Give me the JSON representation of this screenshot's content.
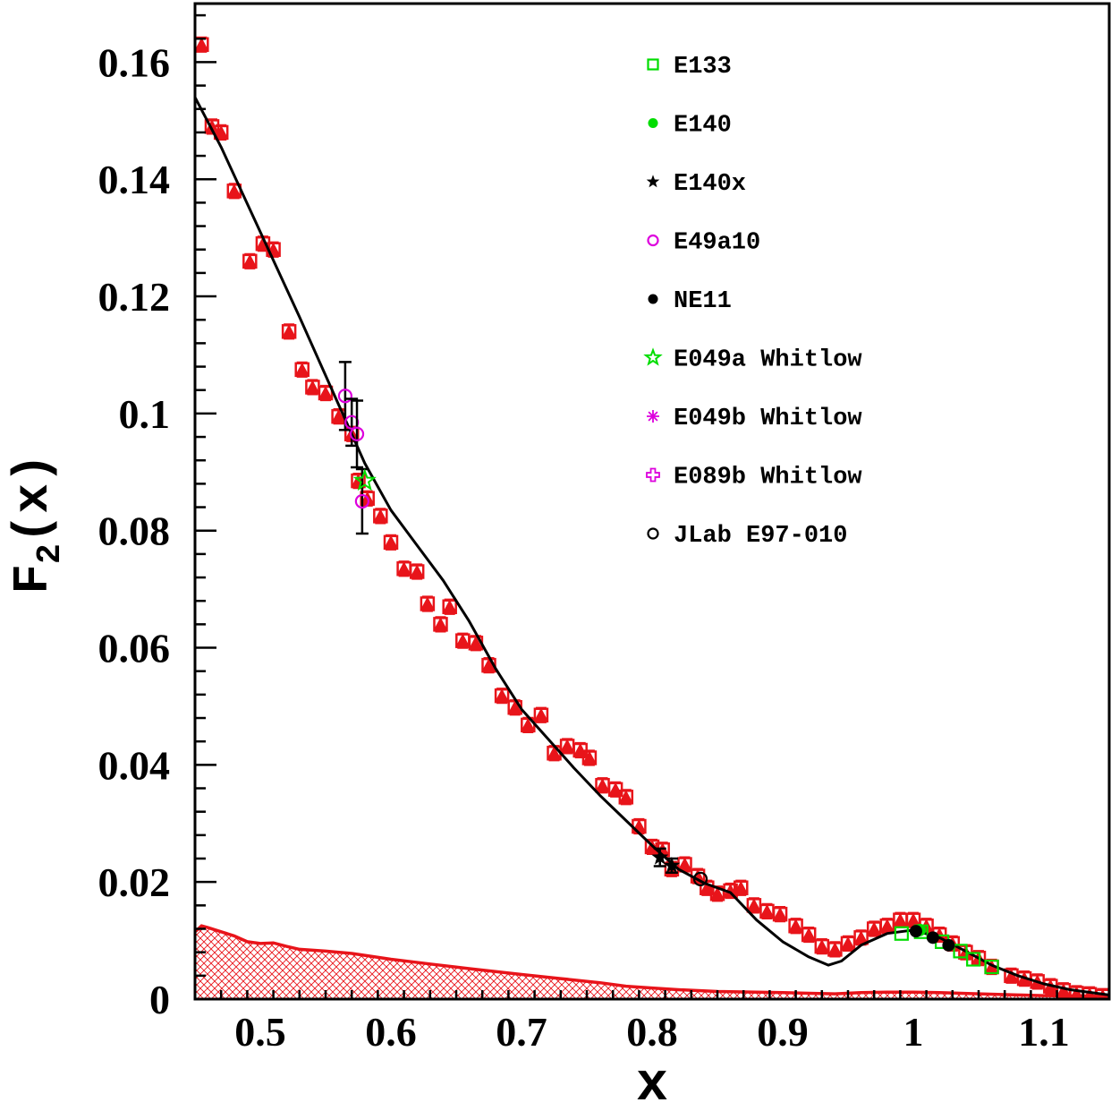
{
  "chart_data": {
    "type": "scatter",
    "title": "",
    "xlabel": "x",
    "ylabel": "F",
    "ylabel_sub": "2",
    "ylabel_rest": "(x)",
    "xlim": [
      0.45,
      1.15
    ],
    "ylim": [
      0,
      0.17
    ],
    "x_ticks": [
      {
        "value": 0.5,
        "label": "0.5"
      },
      {
        "value": 0.6,
        "label": "0.6"
      },
      {
        "value": 0.7,
        "label": "0.7"
      },
      {
        "value": 0.8,
        "label": "0.8"
      },
      {
        "value": 0.9,
        "label": "0.9"
      },
      {
        "value": 1.0,
        "label": "1"
      },
      {
        "value": 1.1,
        "label": "1.1"
      }
    ],
    "y_ticks": [
      {
        "value": 0,
        "label": "0"
      },
      {
        "value": 0.02,
        "label": "0.02"
      },
      {
        "value": 0.04,
        "label": "0.04"
      },
      {
        "value": 0.06,
        "label": "0.06"
      },
      {
        "value": 0.08,
        "label": "0.08"
      },
      {
        "value": 0.1,
        "label": "0.1"
      },
      {
        "value": 0.12,
        "label": "0.12"
      },
      {
        "value": 0.14,
        "label": "0.14"
      },
      {
        "value": 0.16,
        "label": "0.16"
      }
    ],
    "grid": false,
    "legend_position": "top-right",
    "legend": [
      {
        "label": "E133",
        "marker": "open-square",
        "color": "#00dd00"
      },
      {
        "label": "E140",
        "marker": "filled-circle",
        "color": "#00dd00"
      },
      {
        "label": "E140x",
        "marker": "filled-star",
        "color": "#000000"
      },
      {
        "label": "E49a10",
        "marker": "open-circle",
        "color": "#dd00dd"
      },
      {
        "label": "NE11",
        "marker": "filled-circle",
        "color": "#000000"
      },
      {
        "label": "E049a Whitlow",
        "marker": "open-star",
        "color": "#00dd00"
      },
      {
        "label": "E049b Whitlow",
        "marker": "asterisk",
        "color": "#dd00dd"
      },
      {
        "label": "E089b Whitlow",
        "marker": "open-cross",
        "color": "#dd00dd"
      },
      {
        "label": "JLab E97-010",
        "marker": "open-circle",
        "color": "#000000"
      }
    ],
    "colors": {
      "model": "#e8141a",
      "curve": "#000000",
      "band": "#e8141a"
    },
    "model_points": [
      [
        0.455,
        0.163
      ],
      [
        0.463,
        0.149
      ],
      [
        0.47,
        0.148
      ],
      [
        0.48,
        0.138
      ],
      [
        0.492,
        0.126
      ],
      [
        0.502,
        0.129
      ],
      [
        0.51,
        0.128
      ],
      [
        0.522,
        0.114
      ],
      [
        0.532,
        0.1075
      ],
      [
        0.54,
        0.1045
      ],
      [
        0.55,
        0.1035
      ],
      [
        0.56,
        0.0995
      ],
      [
        0.57,
        0.0965
      ],
      [
        0.575,
        0.0885
      ],
      [
        0.582,
        0.0855
      ],
      [
        0.592,
        0.0825
      ],
      [
        0.6,
        0.078
      ],
      [
        0.61,
        0.0735
      ],
      [
        0.62,
        0.073
      ],
      [
        0.628,
        0.0675
      ],
      [
        0.638,
        0.064
      ],
      [
        0.645,
        0.067
      ],
      [
        0.655,
        0.0612
      ],
      [
        0.665,
        0.0608
      ],
      [
        0.675,
        0.057
      ],
      [
        0.685,
        0.0518
      ],
      [
        0.695,
        0.0498
      ],
      [
        0.705,
        0.0468
      ],
      [
        0.715,
        0.0485
      ],
      [
        0.725,
        0.042
      ],
      [
        0.735,
        0.0432
      ],
      [
        0.745,
        0.0425
      ],
      [
        0.752,
        0.0412
      ],
      [
        0.762,
        0.0365
      ],
      [
        0.772,
        0.0358
      ],
      [
        0.78,
        0.0345
      ],
      [
        0.79,
        0.0295
      ],
      [
        0.8,
        0.026
      ],
      [
        0.808,
        0.0255
      ],
      [
        0.815,
        0.0222
      ],
      [
        0.825,
        0.023
      ],
      [
        0.835,
        0.021
      ],
      [
        0.842,
        0.019
      ],
      [
        0.85,
        0.018
      ],
      [
        0.86,
        0.0185
      ],
      [
        0.868,
        0.019
      ],
      [
        0.878,
        0.016
      ],
      [
        0.888,
        0.015
      ],
      [
        0.898,
        0.0145
      ],
      [
        0.91,
        0.0125
      ],
      [
        0.92,
        0.011
      ],
      [
        0.93,
        0.009
      ],
      [
        0.94,
        0.0085
      ],
      [
        0.95,
        0.0095
      ],
      [
        0.96,
        0.0105
      ],
      [
        0.97,
        0.012
      ],
      [
        0.98,
        0.0125
      ],
      [
        0.99,
        0.0135
      ],
      [
        1.0,
        0.0135
      ],
      [
        1.01,
        0.0125
      ],
      [
        1.02,
        0.011
      ],
      [
        1.03,
        0.0095
      ],
      [
        1.04,
        0.008
      ],
      [
        1.05,
        0.007
      ],
      [
        1.06,
        0.0055
      ],
      [
        1.075,
        0.004
      ],
      [
        1.085,
        0.0035
      ],
      [
        1.095,
        0.003
      ],
      [
        1.105,
        0.0022
      ],
      [
        1.115,
        0.0015
      ],
      [
        1.125,
        0.001
      ],
      [
        1.135,
        0.0008
      ],
      [
        1.145,
        0.0005
      ]
    ],
    "model_error": 0.0012,
    "curve": [
      [
        0.45,
        0.154
      ],
      [
        0.47,
        0.1455
      ],
      [
        0.5,
        0.131
      ],
      [
        0.53,
        0.1165
      ],
      [
        0.56,
        0.1015
      ],
      [
        0.58,
        0.0915
      ],
      [
        0.6,
        0.0835
      ],
      [
        0.62,
        0.0775
      ],
      [
        0.64,
        0.0715
      ],
      [
        0.66,
        0.0645
      ],
      [
        0.68,
        0.0565
      ],
      [
        0.7,
        0.0495
      ],
      [
        0.72,
        0.0445
      ],
      [
        0.74,
        0.0395
      ],
      [
        0.76,
        0.0348
      ],
      [
        0.78,
        0.0305
      ],
      [
        0.8,
        0.0262
      ],
      [
        0.82,
        0.0222
      ],
      [
        0.84,
        0.0198
      ],
      [
        0.86,
        0.0182
      ],
      [
        0.88,
        0.0135
      ],
      [
        0.9,
        0.0098
      ],
      [
        0.92,
        0.0072
      ],
      [
        0.935,
        0.0058
      ],
      [
        0.945,
        0.0065
      ],
      [
        0.96,
        0.0092
      ],
      [
        0.98,
        0.0112
      ],
      [
        1.0,
        0.0118
      ],
      [
        1.02,
        0.0105
      ],
      [
        1.04,
        0.0082
      ],
      [
        1.06,
        0.0058
      ],
      [
        1.08,
        0.004
      ],
      [
        1.1,
        0.0026
      ],
      [
        1.12,
        0.0016
      ],
      [
        1.15,
        0.0007
      ]
    ],
    "band_upper": [
      [
        0.45,
        0.0115
      ],
      [
        0.455,
        0.0125
      ],
      [
        0.46,
        0.0122
      ],
      [
        0.47,
        0.0115
      ],
      [
        0.48,
        0.0108
      ],
      [
        0.49,
        0.0098
      ],
      [
        0.5,
        0.0095
      ],
      [
        0.51,
        0.0096
      ],
      [
        0.52,
        0.009
      ],
      [
        0.53,
        0.0085
      ],
      [
        0.55,
        0.0082
      ],
      [
        0.57,
        0.0078
      ],
      [
        0.6,
        0.0068
      ],
      [
        0.63,
        0.006
      ],
      [
        0.66,
        0.0052
      ],
      [
        0.7,
        0.0042
      ],
      [
        0.73,
        0.0035
      ],
      [
        0.76,
        0.0028
      ],
      [
        0.78,
        0.0022
      ],
      [
        0.8,
        0.0019
      ],
      [
        0.82,
        0.0016
      ],
      [
        0.85,
        0.0013
      ],
      [
        0.88,
        0.0012
      ],
      [
        0.9,
        0.0011
      ],
      [
        0.92,
        0.001
      ],
      [
        0.94,
        0.0009
      ],
      [
        0.96,
        0.0011
      ],
      [
        0.98,
        0.0012
      ],
      [
        1.0,
        0.0012
      ],
      [
        1.02,
        0.0011
      ],
      [
        1.05,
        0.0009
      ],
      [
        1.08,
        0.0007
      ],
      [
        1.1,
        0.0006
      ],
      [
        1.15,
        0.0005
      ]
    ],
    "series": [
      {
        "name": "E133",
        "marker": "open-square",
        "color": "#00dd00",
        "points": [
          [
            0.991,
            0.0112
          ],
          [
            1.006,
            0.0115
          ],
          [
            1.022,
            0.0098
          ],
          [
            1.036,
            0.0082
          ],
          [
            1.046,
            0.0068
          ],
          [
            1.06,
            0.0055
          ]
        ]
      },
      {
        "name": "E140",
        "marker": "filled-circle",
        "color": "#00dd00",
        "points": [
          [
            1.005,
            0.0118
          ]
        ]
      },
      {
        "name": "E140x",
        "marker": "filled-star",
        "color": "#000000",
        "points": [
          [
            0.806,
            0.0242
          ],
          [
            0.815,
            0.0228
          ]
        ],
        "errors": [
          0.0015,
          0.0012
        ]
      },
      {
        "name": "E49a10",
        "marker": "open-circle",
        "color": "#dd00dd",
        "points": [
          [
            0.565,
            0.103
          ],
          [
            0.57,
            0.0985
          ],
          [
            0.574,
            0.0965
          ],
          [
            0.578,
            0.085
          ]
        ],
        "errors": [
          0.0058,
          0.004,
          0.0057,
          0.0055
        ]
      },
      {
        "name": "NE11",
        "marker": "filled-circle",
        "color": "#000000",
        "points": [
          [
            1.002,
            0.0116
          ],
          [
            1.015,
            0.0105
          ],
          [
            1.027,
            0.0092
          ]
        ]
      },
      {
        "name": "E049a Whitlow",
        "marker": "open-star",
        "color": "#00dd00",
        "points": [
          [
            0.58,
            0.0885
          ]
        ]
      },
      {
        "name": "E049b Whitlow",
        "marker": "asterisk",
        "color": "#dd00dd",
        "points": []
      },
      {
        "name": "E089b Whitlow",
        "marker": "open-cross",
        "color": "#dd00dd",
        "points": []
      },
      {
        "name": "JLab E97-010",
        "marker": "open-circle",
        "color": "#000000",
        "points": [
          [
            0.837,
            0.0205
          ]
        ]
      }
    ]
  }
}
